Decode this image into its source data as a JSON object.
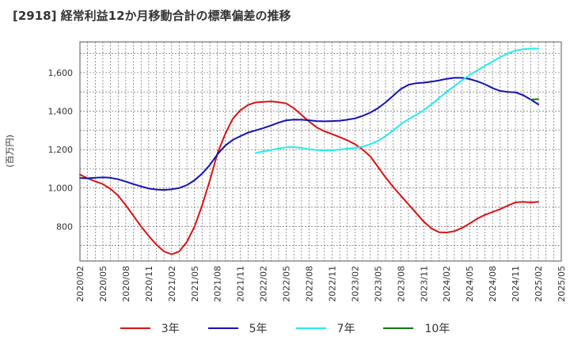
{
  "chart_data": {
    "type": "line",
    "title": "[2918]  経常利益12か月移動合計の標準偏差の推移",
    "ylabel": "(百万円)",
    "xlabel": "",
    "ylim": [
      620,
      1760
    ],
    "yticks": [
      800,
      1000,
      1200,
      1400,
      1600
    ],
    "ytick_labels": [
      "800",
      "1,000",
      "1,200",
      "1,400",
      "1,600"
    ],
    "xlim": [
      "2020/02",
      "2025/05"
    ],
    "xtick_labels": [
      "2020/02",
      "2020/05",
      "2020/08",
      "2020/11",
      "2021/02",
      "2021/05",
      "2021/08",
      "2021/11",
      "2022/02",
      "2022/05",
      "2022/08",
      "2022/11",
      "2023/02",
      "2023/05",
      "2023/08",
      "2023/11",
      "2024/02",
      "2024/05",
      "2024/08",
      "2024/11",
      "2025/02",
      "2025/05"
    ],
    "grid": true,
    "legend_position": "bottom",
    "series": [
      {
        "name": "3年",
        "color": "#dd1111",
        "x": [
          "2020/02",
          "2020/03",
          "2020/04",
          "2020/05",
          "2020/06",
          "2020/07",
          "2020/08",
          "2020/09",
          "2020/10",
          "2020/11",
          "2020/12",
          "2021/01",
          "2021/02",
          "2021/03",
          "2021/04",
          "2021/05",
          "2021/06",
          "2021/07",
          "2021/08",
          "2021/09",
          "2021/10",
          "2021/11",
          "2021/12",
          "2022/01",
          "2022/02",
          "2022/03",
          "2022/04",
          "2022/05",
          "2022/06",
          "2022/07",
          "2022/08",
          "2022/09",
          "2022/10",
          "2022/11",
          "2022/12",
          "2023/01",
          "2023/02",
          "2023/03",
          "2023/04",
          "2023/05",
          "2023/06",
          "2023/07",
          "2023/08",
          "2023/09",
          "2023/10",
          "2023/11",
          "2023/12",
          "2024/01",
          "2024/02",
          "2024/03",
          "2024/04",
          "2024/05",
          "2024/06",
          "2024/07",
          "2024/08",
          "2024/09",
          "2024/10",
          "2024/11",
          "2024/12",
          "2025/01",
          "2025/02"
        ],
        "values": [
          1070,
          1050,
          1035,
          1020,
          995,
          960,
          910,
          855,
          800,
          750,
          705,
          670,
          655,
          670,
          720,
          800,
          910,
          1040,
          1180,
          1280,
          1360,
          1405,
          1432,
          1445,
          1448,
          1450,
          1447,
          1440,
          1415,
          1380,
          1345,
          1315,
          1295,
          1280,
          1265,
          1248,
          1228,
          1200,
          1165,
          1110,
          1055,
          1005,
          960,
          915,
          870,
          825,
          790,
          770,
          768,
          775,
          792,
          815,
          840,
          860,
          875,
          890,
          908,
          925,
          928,
          925,
          928
        ]
      },
      {
        "name": "5年",
        "color": "#1111bb",
        "x": [
          "2020/02",
          "2020/03",
          "2020/04",
          "2020/05",
          "2020/06",
          "2020/07",
          "2020/08",
          "2020/09",
          "2020/10",
          "2020/11",
          "2020/12",
          "2021/01",
          "2021/02",
          "2021/03",
          "2021/04",
          "2021/05",
          "2021/06",
          "2021/07",
          "2021/08",
          "2021/09",
          "2021/10",
          "2021/11",
          "2021/12",
          "2022/01",
          "2022/02",
          "2022/03",
          "2022/04",
          "2022/05",
          "2022/06",
          "2022/07",
          "2022/08",
          "2022/09",
          "2022/10",
          "2022/11",
          "2022/12",
          "2023/01",
          "2023/02",
          "2023/03",
          "2023/04",
          "2023/05",
          "2023/06",
          "2023/07",
          "2023/08",
          "2023/09",
          "2023/10",
          "2023/11",
          "2023/12",
          "2024/01",
          "2024/02",
          "2024/03",
          "2024/04",
          "2024/05",
          "2024/06",
          "2024/07",
          "2024/08",
          "2024/09",
          "2024/10",
          "2024/11",
          "2024/12",
          "2025/01",
          "2025/02"
        ],
        "values": [
          1052,
          1050,
          1053,
          1055,
          1053,
          1045,
          1033,
          1020,
          1008,
          997,
          992,
          990,
          993,
          1000,
          1015,
          1040,
          1075,
          1120,
          1175,
          1220,
          1250,
          1270,
          1288,
          1300,
          1312,
          1325,
          1340,
          1352,
          1356,
          1355,
          1352,
          1348,
          1347,
          1348,
          1350,
          1355,
          1362,
          1375,
          1392,
          1415,
          1445,
          1480,
          1515,
          1537,
          1545,
          1548,
          1553,
          1560,
          1568,
          1573,
          1573,
          1567,
          1555,
          1540,
          1520,
          1505,
          1500,
          1498,
          1483,
          1460,
          1435
        ]
      },
      {
        "name": "7年",
        "color": "#22eeee",
        "x": [
          "2022/01",
          "2022/02",
          "2022/03",
          "2022/04",
          "2022/05",
          "2022/06",
          "2022/07",
          "2022/08",
          "2022/09",
          "2022/10",
          "2022/11",
          "2022/12",
          "2023/01",
          "2023/02",
          "2023/03",
          "2023/04",
          "2023/05",
          "2023/06",
          "2023/07",
          "2023/08",
          "2023/09",
          "2023/10",
          "2023/11",
          "2023/12",
          "2024/01",
          "2024/02",
          "2024/03",
          "2024/04",
          "2024/05",
          "2024/06",
          "2024/07",
          "2024/08",
          "2024/09",
          "2024/10",
          "2024/11",
          "2024/12",
          "2025/01",
          "2025/02"
        ],
        "values": [
          1183,
          1190,
          1198,
          1205,
          1212,
          1213,
          1208,
          1202,
          1198,
          1195,
          1196,
          1200,
          1205,
          1208,
          1215,
          1228,
          1245,
          1270,
          1300,
          1332,
          1358,
          1380,
          1405,
          1435,
          1468,
          1500,
          1530,
          1560,
          1588,
          1612,
          1635,
          1658,
          1680,
          1700,
          1715,
          1722,
          1725,
          1725
        ]
      },
      {
        "name": "10年",
        "color": "#117711",
        "x": [
          "2025/01",
          "2025/02"
        ],
        "values": [
          1460,
          1462
        ]
      }
    ]
  }
}
